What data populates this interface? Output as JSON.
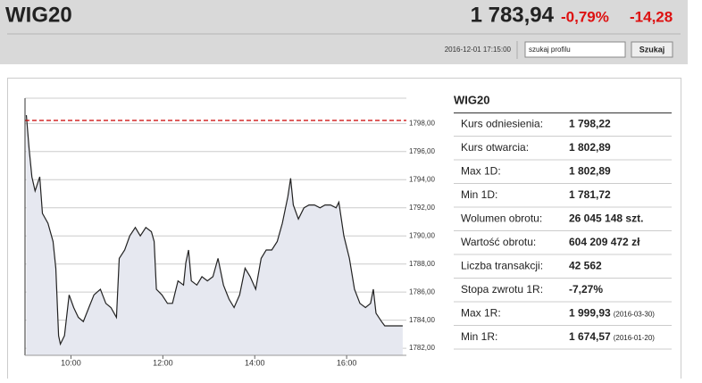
{
  "header": {
    "title": "WIG20",
    "price": "1 783,94",
    "change_pct": "-0,79%",
    "change": "-14,28",
    "timestamp": "2016-12-01 17:15:00",
    "search_placeholder": "szukaj profilu",
    "search_button": "Szukaj"
  },
  "table": {
    "title": "WIG20",
    "rows": [
      {
        "label": "Kurs odniesienia:",
        "value": "1 798,22"
      },
      {
        "label": "Kurs otwarcia:",
        "value": "1 802,89"
      },
      {
        "label": "Max 1D:",
        "value": "1 802,89"
      },
      {
        "label": "Min 1D:",
        "value": "1 781,72"
      },
      {
        "label": "Wolumen obrotu:",
        "value": "26 045 148 szt."
      },
      {
        "label": "Wartość obrotu:",
        "value": "604 209 472 zł"
      },
      {
        "label": "Liczba transakcji:",
        "value": "42 562"
      },
      {
        "label": "Stopa zwrotu 1R:",
        "value": "-7,27%"
      },
      {
        "label": "Max 1R:",
        "value": "1 999,93",
        "note": "(2016-03-30)"
      },
      {
        "label": "Min 1R:",
        "value": "1 674,57",
        "note": "(2016-01-20)"
      }
    ]
  },
  "chart_data": {
    "type": "area",
    "grid": true,
    "reference_line": 1798.22,
    "reference_color": "#cc0000",
    "xlim": [
      9,
      17.3
    ],
    "ylim": [
      1781.5,
      1799.8
    ],
    "xticks": [
      {
        "value": 10,
        "label": "10:00"
      },
      {
        "value": 12,
        "label": "12:00"
      },
      {
        "value": 14,
        "label": "14:00"
      },
      {
        "value": 16,
        "label": "16:00"
      }
    ],
    "yticks": [
      {
        "value": 1782,
        "label": "1782,00"
      },
      {
        "value": 1784,
        "label": "1784,00"
      },
      {
        "value": 1786,
        "label": "1786,00"
      },
      {
        "value": 1788,
        "label": "1788,00"
      },
      {
        "value": 1790,
        "label": "1790,00"
      },
      {
        "value": 1792,
        "label": "1792,00"
      },
      {
        "value": 1794,
        "label": "1794,00"
      },
      {
        "value": 1796,
        "label": "1796,00"
      },
      {
        "value": 1798,
        "label": "1798,00"
      }
    ],
    "x": [
      9.03,
      9.09,
      9.15,
      9.22,
      9.32,
      9.38,
      9.5,
      9.61,
      9.67,
      9.73,
      9.77,
      9.86,
      9.96,
      10.06,
      10.16,
      10.27,
      10.39,
      10.5,
      10.64,
      10.76,
      10.87,
      10.99,
      11.05,
      11.17,
      11.28,
      11.4,
      11.51,
      11.63,
      11.75,
      11.81,
      11.86,
      11.98,
      12.1,
      12.21,
      12.33,
      12.45,
      12.5,
      12.56,
      12.62,
      12.74,
      12.85,
      12.97,
      13.09,
      13.2,
      13.32,
      13.44,
      13.55,
      13.67,
      13.79,
      13.9,
      14.02,
      14.14,
      14.25,
      14.37,
      14.49,
      14.6,
      14.72,
      14.78,
      14.84,
      14.95,
      15.07,
      15.18,
      15.3,
      15.42,
      15.53,
      15.65,
      15.77,
      15.83,
      15.94,
      16.06,
      16.17,
      16.29,
      16.41,
      16.52,
      16.58,
      16.64,
      16.76,
      16.83,
      17.22
    ],
    "series": [
      {
        "color": "#222222",
        "fill": "#e6e8f0",
        "values": [
          1798.6,
          1796.2,
          1794.2,
          1793.2,
          1794.2,
          1791.6,
          1790.9,
          1789.6,
          1787.7,
          1782.9,
          1782.3,
          1782.9,
          1785.8,
          1784.9,
          1784.2,
          1783.9,
          1784.9,
          1785.8,
          1786.2,
          1785.2,
          1784.9,
          1784.2,
          1788.4,
          1789.0,
          1790.0,
          1790.6,
          1790.0,
          1790.6,
          1790.3,
          1789.6,
          1786.2,
          1785.8,
          1785.2,
          1785.2,
          1786.8,
          1786.5,
          1788.1,
          1789.0,
          1786.8,
          1786.5,
          1787.1,
          1786.8,
          1787.1,
          1788.4,
          1786.5,
          1785.5,
          1784.9,
          1785.8,
          1787.7,
          1787.1,
          1786.2,
          1788.4,
          1789.0,
          1789.0,
          1789.6,
          1790.9,
          1792.8,
          1794.1,
          1792.2,
          1791.2,
          1792.0,
          1792.2,
          1792.2,
          1792.0,
          1792.2,
          1792.2,
          1792.0,
          1792.4,
          1790.0,
          1788.4,
          1786.2,
          1785.2,
          1784.9,
          1785.2,
          1786.2,
          1784.5,
          1783.9,
          1783.6,
          1783.6
        ]
      }
    ]
  }
}
